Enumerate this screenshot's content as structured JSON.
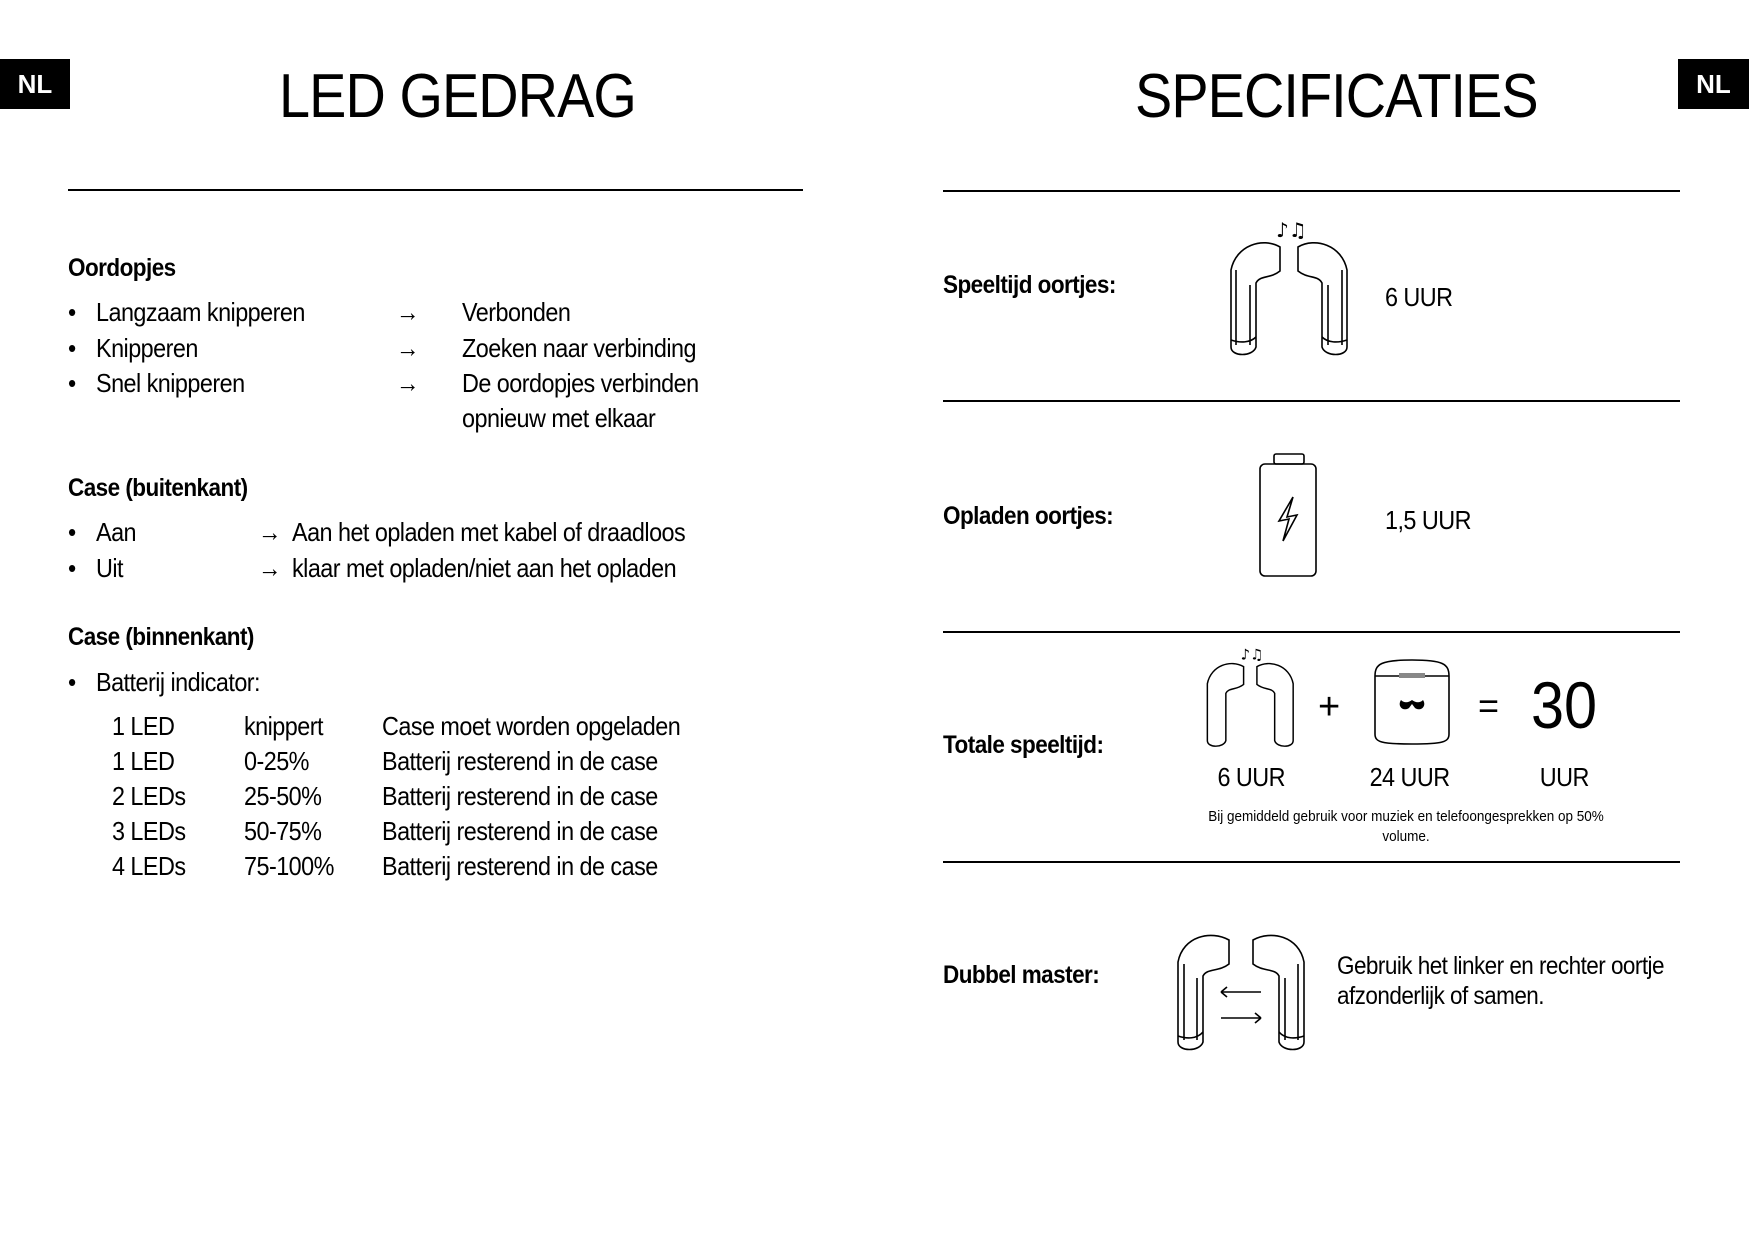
{
  "lang_badge": "NL",
  "left": {
    "title": "LED GEDRAG",
    "earbuds": {
      "heading": "Oordopjes",
      "items": [
        {
          "label": "Langzaam knipperen",
          "result": "Verbonden"
        },
        {
          "label": "Knipperen",
          "result": "Zoeken naar verbinding"
        },
        {
          "label": "Snel knipperen",
          "result": "De oordopjes verbinden",
          "result_line2": "opnieuw met elkaar"
        }
      ]
    },
    "case_outside": {
      "heading": "Case (buitenkant)",
      "items": [
        {
          "label": "Aan",
          "result": "Aan het opladen met kabel of draadloos"
        },
        {
          "label": "Uit",
          "result": "klaar met opladen/niet aan het opladen"
        }
      ]
    },
    "case_inside": {
      "heading": "Case (binnenkant)",
      "bullet": "Batterij indicator:",
      "rows": [
        [
          "1 LED",
          "knippert",
          "Case moet worden opgeladen"
        ],
        [
          "1 LED",
          "0-25%",
          "Batterij resterend in de case"
        ],
        [
          "2 LEDs",
          "25-50%",
          "Batterij resterend in de case"
        ],
        [
          "3 LEDs",
          "50-75%",
          "Batterij resterend in de case"
        ],
        [
          "4 LEDs",
          "75-100%",
          "Batterij resterend in de case"
        ]
      ]
    },
    "bullet": "•",
    "arrow": "→"
  },
  "right": {
    "title": "SPECIFICATIES",
    "playtime": {
      "label": "Speeltijd oortjes:",
      "value": "6 UUR",
      "icon": "earbuds-music-icon"
    },
    "charging": {
      "label": "Opladen oortjes:",
      "value": "1,5 UUR",
      "icon": "battery-charging-icon"
    },
    "total": {
      "label": "Totale speeltijd:",
      "plus": "+",
      "equals": "=",
      "earbuds_value": "6 UUR",
      "case_value": "24 UUR",
      "total_number": "30",
      "total_unit": "UUR",
      "note": "Bij gemiddeld gebruik voor muziek en telefoongesprekken op 50%",
      "note_line2": "volume."
    },
    "dual_master": {
      "label": "Dubbel master:",
      "text_line1": "Gebruik het linker en rechter oortje",
      "text_line2": "afzonderlijk of samen."
    }
  }
}
